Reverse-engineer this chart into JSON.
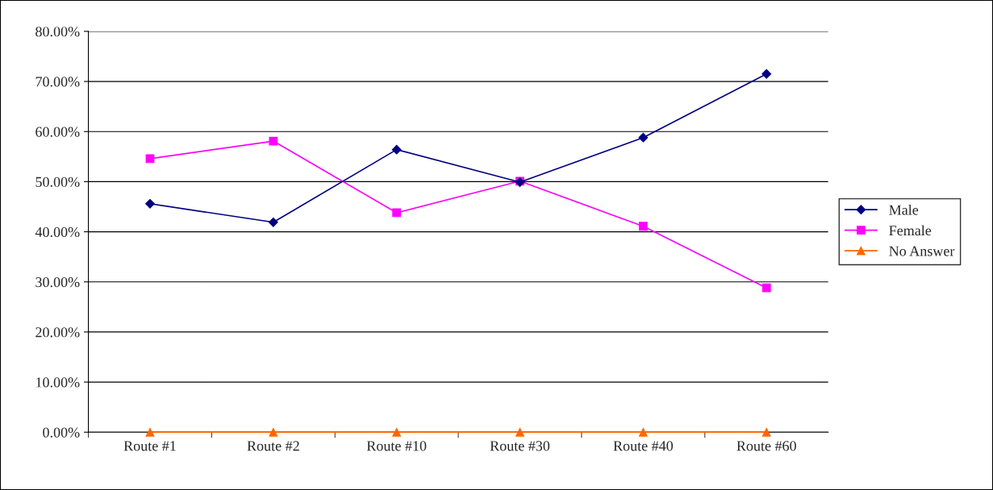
{
  "chart_data": {
    "type": "line",
    "categories": [
      "Route #1",
      "Route #2",
      "Route #10",
      "Route #30",
      "Route #40",
      "Route #60"
    ],
    "series": [
      {
        "name": "Male",
        "color": "#000080",
        "marker": "diamond",
        "values": [
          45.6,
          41.9,
          56.4,
          49.9,
          58.8,
          71.5
        ]
      },
      {
        "name": "Female",
        "color": "#ff00ff",
        "marker": "square",
        "values": [
          54.6,
          58.1,
          43.8,
          50.1,
          41.1,
          28.8
        ]
      },
      {
        "name": "No Answer",
        "color": "#ff6600",
        "marker": "triangle",
        "values": [
          0,
          0,
          0,
          0,
          0,
          0
        ]
      }
    ],
    "ylim": [
      0,
      80
    ],
    "yticks": [
      {
        "value": 0,
        "label": "0.00%"
      },
      {
        "value": 10,
        "label": "10.00%"
      },
      {
        "value": 20,
        "label": "20.00%"
      },
      {
        "value": 30,
        "label": "30.00%"
      },
      {
        "value": 40,
        "label": "40.00%"
      },
      {
        "value": 50,
        "label": "50.00%"
      },
      {
        "value": 60,
        "label": "60.00%"
      },
      {
        "value": 70,
        "label": "70.00%"
      },
      {
        "value": 80,
        "label": "80.00%"
      }
    ],
    "grid": "y",
    "legend": "right",
    "line_style": "solid"
  }
}
